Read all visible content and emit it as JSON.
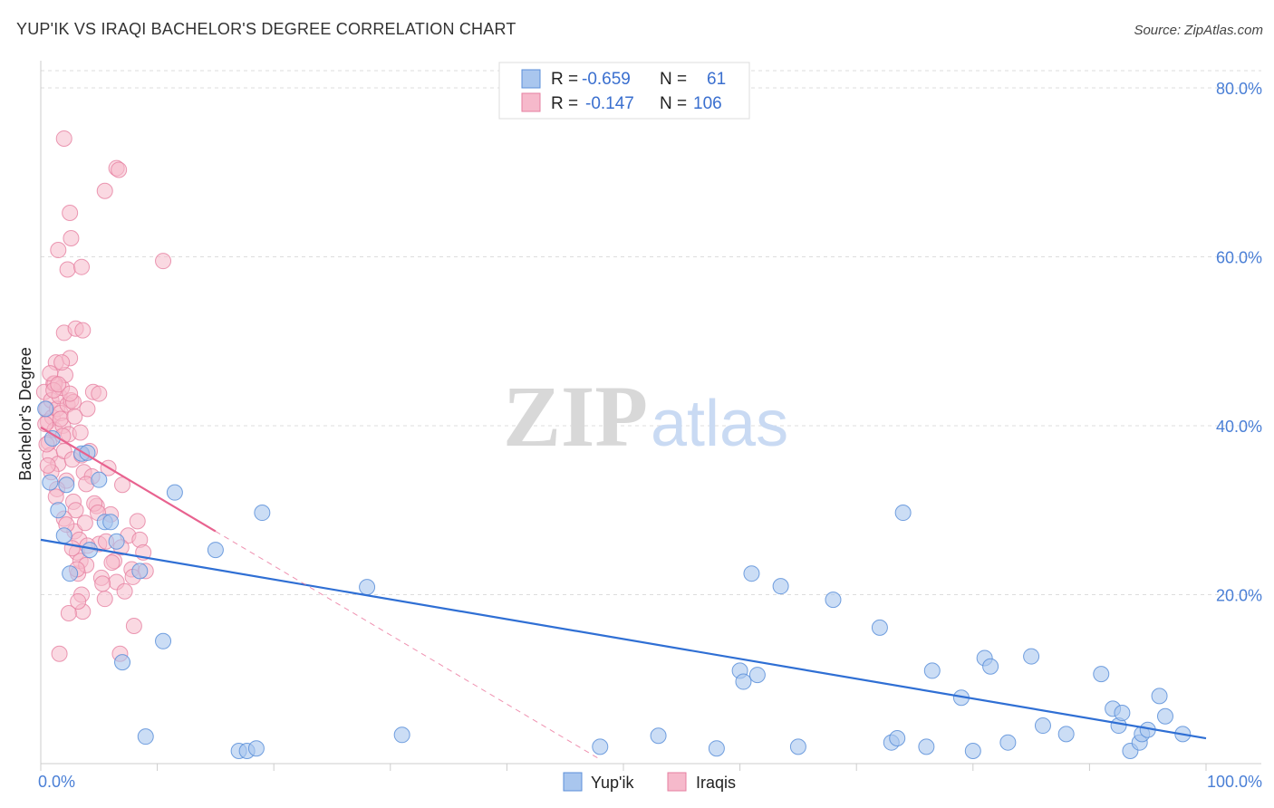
{
  "title": "YUP'IK VS IRAQI BACHELOR'S DEGREE CORRELATION CHART",
  "source": "Source: ZipAtlas.com",
  "watermark": {
    "zip": "ZIP",
    "atlas": "atlas"
  },
  "colors": {
    "blue_fill": "#a9c6ee",
    "blue_stroke": "#5b8fd9",
    "blue_line": "#2f6fd4",
    "pink_fill": "#f6b9cb",
    "pink_stroke": "#e67fa0",
    "pink_line": "#e8628f",
    "axis_text": "#4a7fd6",
    "grid": "#dddddd"
  },
  "legend": {
    "rows": [
      {
        "r_label": "R = ",
        "r_value": "-0.659",
        "n_label": "N = ",
        "n_value": "61"
      },
      {
        "r_label": "R = ",
        "r_value": "-0.147",
        "n_label": "N = ",
        "n_value": "106"
      }
    ]
  },
  "bottom_legend": [
    "Yup'ik",
    "Iraqis"
  ],
  "chart_data": {
    "type": "scatter",
    "title": "YUP'IK VS IRAQI BACHELOR'S DEGREE CORRELATION CHART",
    "xlabel": "",
    "ylabel": "Bachelor's Degree",
    "xlim": [
      0,
      100
    ],
    "ylim": [
      0,
      82
    ],
    "x_tick_labels": [
      "0.0%",
      "100.0%"
    ],
    "y_ticks": [
      20,
      40,
      60,
      80
    ],
    "y_tick_labels": [
      "20.0%",
      "40.0%",
      "60.0%",
      "80.0%"
    ],
    "series": [
      {
        "name": "Yup'ik",
        "r": -0.659,
        "n": 61,
        "trend": {
          "x0": 0,
          "y0": 26.5,
          "x1": 100,
          "y1": 3.0
        },
        "points": [
          [
            0.8,
            33.3
          ],
          [
            1.5,
            30.0
          ],
          [
            2.0,
            27.0
          ],
          [
            2.5,
            22.5
          ],
          [
            3.5,
            36.7
          ],
          [
            4.0,
            36.8
          ],
          [
            4.2,
            25.3
          ],
          [
            5.0,
            33.6
          ],
          [
            5.5,
            28.6
          ],
          [
            6.0,
            28.6
          ],
          [
            6.5,
            26.3
          ],
          [
            7.0,
            12.0
          ],
          [
            8.5,
            22.8
          ],
          [
            9.0,
            3.2
          ],
          [
            10.5,
            14.5
          ],
          [
            11.5,
            32.1
          ],
          [
            15.0,
            25.3
          ],
          [
            17.0,
            1.5
          ],
          [
            17.7,
            1.5
          ],
          [
            18.5,
            1.8
          ],
          [
            19.0,
            29.7
          ],
          [
            28.0,
            20.9
          ],
          [
            31.0,
            3.4
          ],
          [
            48.0,
            2.0
          ],
          [
            53.0,
            3.3
          ],
          [
            58.0,
            1.8
          ],
          [
            60.0,
            11.0
          ],
          [
            60.3,
            9.7
          ],
          [
            61.0,
            22.5
          ],
          [
            61.5,
            10.5
          ],
          [
            63.5,
            21.0
          ],
          [
            65.0,
            2.0
          ],
          [
            68.0,
            19.4
          ],
          [
            72.0,
            16.1
          ],
          [
            73.0,
            2.5
          ],
          [
            73.5,
            3.0
          ],
          [
            74.0,
            29.7
          ],
          [
            76.0,
            2.0
          ],
          [
            76.5,
            11.0
          ],
          [
            79.0,
            7.8
          ],
          [
            80.0,
            1.5
          ],
          [
            81.0,
            12.5
          ],
          [
            81.5,
            11.5
          ],
          [
            83.0,
            2.5
          ],
          [
            85.0,
            12.7
          ],
          [
            86.0,
            4.5
          ],
          [
            88.0,
            3.5
          ],
          [
            91.0,
            10.6
          ],
          [
            92.0,
            6.5
          ],
          [
            92.5,
            4.5
          ],
          [
            92.8,
            6.0
          ],
          [
            93.5,
            1.5
          ],
          [
            94.3,
            2.5
          ],
          [
            94.5,
            3.5
          ],
          [
            95.0,
            4.0
          ],
          [
            96.0,
            8.0
          ],
          [
            96.5,
            5.6
          ],
          [
            98.0,
            3.5
          ],
          [
            1.0,
            38.5
          ],
          [
            2.2,
            33.0
          ],
          [
            0.4,
            42.0
          ]
        ]
      },
      {
        "name": "Iraqis",
        "r": -0.147,
        "n": 106,
        "trend_solid": {
          "x0": 0,
          "y0": 39.8,
          "x1": 15.0,
          "y1": 27.5
        },
        "trend_dashed": {
          "x0": 15.0,
          "y0": 27.5,
          "x1": 48.0,
          "y1": 0.5
        },
        "points": [
          [
            0.3,
            44.0
          ],
          [
            0.5,
            42.0
          ],
          [
            0.6,
            40.5
          ],
          [
            0.7,
            38.0
          ],
          [
            0.8,
            36.5
          ],
          [
            0.9,
            43.0
          ],
          [
            1.0,
            41.0
          ],
          [
            1.1,
            45.0
          ],
          [
            1.2,
            39.5
          ],
          [
            1.3,
            47.5
          ],
          [
            1.4,
            42.0
          ],
          [
            1.5,
            35.5
          ],
          [
            1.6,
            43.5
          ],
          [
            1.7,
            41.5
          ],
          [
            1.8,
            44.5
          ],
          [
            1.9,
            40.0
          ],
          [
            2.0,
            37.0
          ],
          [
            2.1,
            46.0
          ],
          [
            2.2,
            33.5
          ],
          [
            2.3,
            42.5
          ],
          [
            2.4,
            39.0
          ],
          [
            2.5,
            48.0
          ],
          [
            2.6,
            43.0
          ],
          [
            2.7,
            36.0
          ],
          [
            2.8,
            31.0
          ],
          [
            2.9,
            27.5
          ],
          [
            3.0,
            30.0
          ],
          [
            3.1,
            25.0
          ],
          [
            3.2,
            22.5
          ],
          [
            3.3,
            26.5
          ],
          [
            3.4,
            24.0
          ],
          [
            3.5,
            20.0
          ],
          [
            3.6,
            18.0
          ],
          [
            3.7,
            34.5
          ],
          [
            3.8,
            28.5
          ],
          [
            3.9,
            23.5
          ],
          [
            4.0,
            42.0
          ],
          [
            4.2,
            37.0
          ],
          [
            4.5,
            44.0
          ],
          [
            4.8,
            30.5
          ],
          [
            5.0,
            26.0
          ],
          [
            5.2,
            22.0
          ],
          [
            5.5,
            19.5
          ],
          [
            5.8,
            35.0
          ],
          [
            6.0,
            29.5
          ],
          [
            6.3,
            24.0
          ],
          [
            6.5,
            21.5
          ],
          [
            6.8,
            13.0
          ],
          [
            7.0,
            33.0
          ],
          [
            7.5,
            27.0
          ],
          [
            7.8,
            23.0
          ],
          [
            8.0,
            16.3
          ],
          [
            8.3,
            28.7
          ],
          [
            8.5,
            26.5
          ],
          [
            8.8,
            25.0
          ],
          [
            9.0,
            22.8
          ],
          [
            2.0,
            74.0
          ],
          [
            6.5,
            70.5
          ],
          [
            6.7,
            70.3
          ],
          [
            5.5,
            67.8
          ],
          [
            2.5,
            65.2
          ],
          [
            2.6,
            62.2
          ],
          [
            1.5,
            60.8
          ],
          [
            2.3,
            58.5
          ],
          [
            3.5,
            58.8
          ],
          [
            10.5,
            59.5
          ],
          [
            2.0,
            51.0
          ],
          [
            3.0,
            51.5
          ],
          [
            3.6,
            51.3
          ],
          [
            1.8,
            47.5
          ],
          [
            5.0,
            43.8
          ],
          [
            1.6,
            13.0
          ],
          [
            4.0,
            25.8
          ],
          [
            5.3,
            21.3
          ],
          [
            3.2,
            19.2
          ],
          [
            2.4,
            17.8
          ],
          [
            1.2,
            45.0
          ],
          [
            0.5,
            37.8
          ],
          [
            1.9,
            38.8
          ],
          [
            2.8,
            42.8
          ],
          [
            3.5,
            36.5
          ],
          [
            4.4,
            34.0
          ],
          [
            0.9,
            34.5
          ],
          [
            1.4,
            32.5
          ],
          [
            2.0,
            29.0
          ],
          [
            2.7,
            25.5
          ],
          [
            3.1,
            23.0
          ],
          [
            0.4,
            40.2
          ],
          [
            1.1,
            44.2
          ],
          [
            1.7,
            40.8
          ],
          [
            2.5,
            43.8
          ],
          [
            3.4,
            39.2
          ],
          [
            0.6,
            35.3
          ],
          [
            1.3,
            31.6
          ],
          [
            2.2,
            28.3
          ],
          [
            4.6,
            30.8
          ],
          [
            5.6,
            26.3
          ],
          [
            6.1,
            23.8
          ],
          [
            7.2,
            20.4
          ],
          [
            0.8,
            46.2
          ],
          [
            1.5,
            44.9
          ],
          [
            2.9,
            41.1
          ],
          [
            3.9,
            33.1
          ],
          [
            4.9,
            29.7
          ],
          [
            6.9,
            25.6
          ],
          [
            7.9,
            22.1
          ]
        ]
      }
    ]
  }
}
